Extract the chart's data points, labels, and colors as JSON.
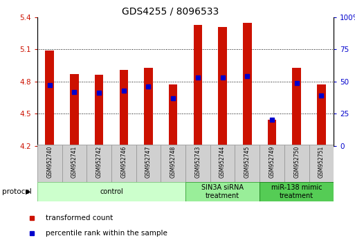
{
  "title": "GDS4255 / 8096533",
  "samples": [
    "GSM952740",
    "GSM952741",
    "GSM952742",
    "GSM952746",
    "GSM952747",
    "GSM952748",
    "GSM952743",
    "GSM952744",
    "GSM952745",
    "GSM952749",
    "GSM952750",
    "GSM952751"
  ],
  "transformed_count": [
    5.09,
    4.87,
    4.86,
    4.91,
    4.93,
    4.77,
    5.33,
    5.31,
    5.35,
    4.44,
    4.93,
    4.77
  ],
  "percentile_rank": [
    47,
    42,
    41,
    43,
    46,
    37,
    53,
    53,
    54,
    20,
    49,
    39
  ],
  "ylim_left": [
    4.2,
    5.4
  ],
  "ylim_right": [
    0,
    100
  ],
  "yticks_left": [
    4.2,
    4.5,
    4.8,
    5.1,
    5.4
  ],
  "yticks_right": [
    0,
    25,
    50,
    75,
    100
  ],
  "bar_color": "#cc1100",
  "dot_color": "#0000cc",
  "bar_bottom": 4.2,
  "groups": [
    {
      "label": "control",
      "start": 0,
      "end": 6,
      "color": "#ccffcc",
      "border": "#88cc88"
    },
    {
      "label": "SIN3A siRNA\ntreatment",
      "start": 6,
      "end": 9,
      "color": "#99ee99",
      "border": "#44aa44"
    },
    {
      "label": "miR-138 mimic\ntreatment",
      "start": 9,
      "end": 12,
      "color": "#55cc55",
      "border": "#228822"
    }
  ],
  "protocol_label": "protocol",
  "legend_items": [
    "transformed count",
    "percentile rank within the sample"
  ],
  "tick_label_color_left": "#cc1100",
  "tick_label_color_right": "#0000cc",
  "title_fontsize": 10,
  "bar_width": 0.35
}
